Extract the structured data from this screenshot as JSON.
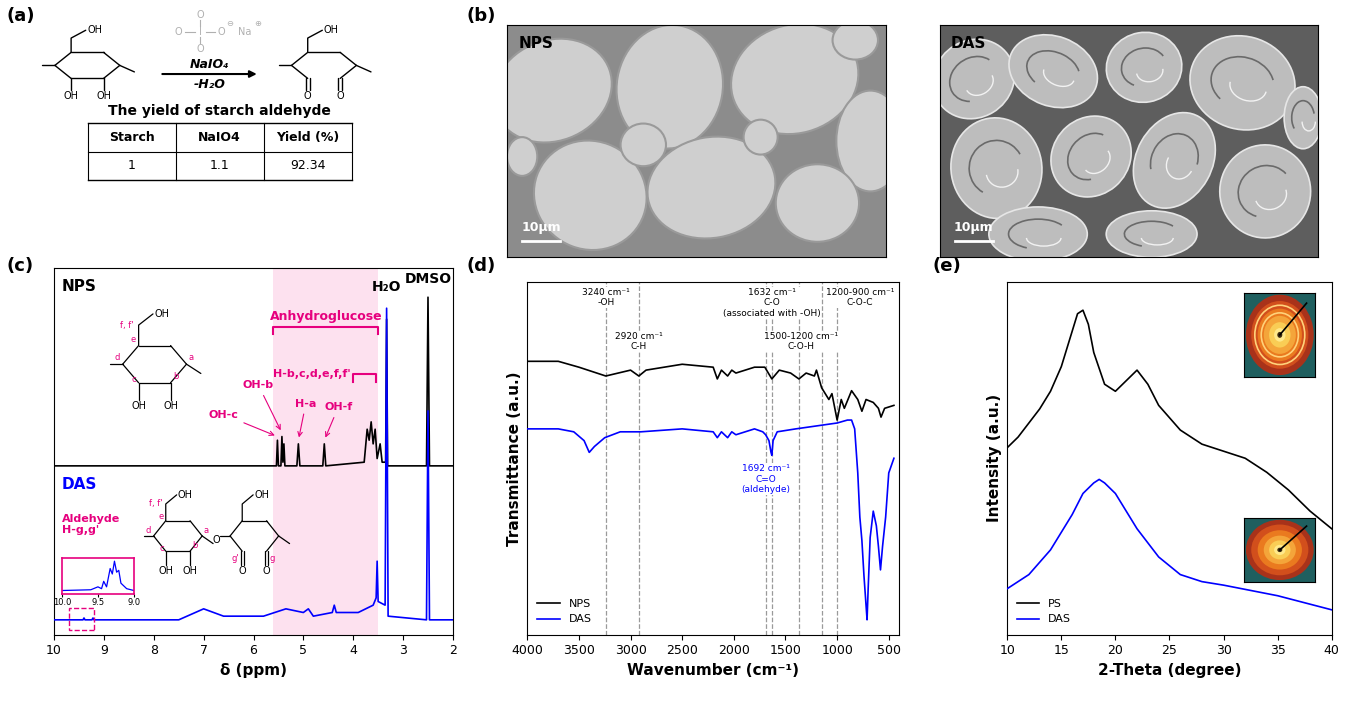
{
  "panel_labels": [
    "(a)",
    "(b)",
    "(c)",
    "(d)",
    "(e)"
  ],
  "scheme": {
    "reagent": "NaIO₄",
    "byproduct": "-H₂O",
    "periodate": {
      "atoms": [
        "I",
        "O",
        "O",
        "O",
        "O",
        "Na"
      ],
      "charges": [
        "⊖",
        "⊕"
      ]
    },
    "reactant_groups": [
      "OH",
      "OH",
      "OH"
    ],
    "product_groups": [
      "OH",
      "O",
      "O"
    ],
    "caption": "The yield of starch aldehyde",
    "table": {
      "header": [
        "Starch",
        "NaIO4",
        "Yield (%)"
      ],
      "rows": [
        [
          1,
          1.1,
          92.34
        ]
      ]
    }
  },
  "sem": {
    "images": [
      "NPS",
      "DAS"
    ],
    "scale_bar": "10μm"
  },
  "chart_data": [
    {
      "type": "line",
      "xlabel": "δ (ppm)",
      "xlim": [
        10,
        2
      ],
      "xticks": [
        10,
        9,
        8,
        7,
        6,
        5,
        4,
        3,
        2
      ],
      "ylim": [
        0,
        1
      ],
      "tick_labels": "x",
      "series": [
        {
          "name": "NPS",
          "color": "#000000",
          "x": [
            10,
            5.6,
            5.54,
            5.52,
            5.5,
            5.45,
            5.43,
            5.41,
            5.39,
            5.37,
            5.13,
            5.1,
            5.07,
            4.61,
            4.58,
            4.55,
            3.78,
            3.72,
            3.68,
            3.64,
            3.6,
            3.56,
            3.52,
            3.46,
            3.42,
            3.38,
            3.35,
            3.33,
            3.31,
            2.53,
            2.5,
            2.47,
            2
          ],
          "values": [
            0.46,
            0.46,
            0.46,
            0.53,
            0.46,
            0.46,
            0.54,
            0.47,
            0.52,
            0.46,
            0.46,
            0.52,
            0.46,
            0.46,
            0.52,
            0.46,
            0.47,
            0.56,
            0.53,
            0.58,
            0.52,
            0.56,
            0.48,
            0.52,
            0.47,
            0.47,
            0.47,
            0.86,
            0.46,
            0.46,
            0.92,
            0.46,
            0.46
          ]
        },
        {
          "name": "DAS",
          "color": "#0000ff",
          "x": [
            10,
            9.42,
            9.4,
            9.38,
            9.24,
            9.22,
            9.2,
            7.5,
            7.0,
            6.6,
            5.8,
            5.35,
            5.0,
            4.9,
            4.8,
            4.42,
            4.38,
            4.34,
            3.9,
            3.6,
            3.54,
            3.52,
            3.5,
            3.36,
            3.33,
            3.3,
            2.53,
            2.5,
            2.47,
            2
          ],
          "values": [
            0.04,
            0.04,
            0.045,
            0.04,
            0.04,
            0.045,
            0.04,
            0.04,
            0.07,
            0.05,
            0.05,
            0.07,
            0.06,
            0.07,
            0.05,
            0.06,
            0.08,
            0.06,
            0.06,
            0.08,
            0.1,
            0.2,
            0.09,
            0.08,
            0.89,
            0.05,
            0.04,
            0.61,
            0.04,
            0.04
          ]
        }
      ],
      "regions": [
        {
          "label": "Anhydroglucose",
          "range": [
            5.6,
            3.5
          ],
          "color": "#fde1ef"
        },
        {
          "label": "H-b,c,d,e,f,f'",
          "range": [
            4.0,
            3.55
          ]
        }
      ],
      "peak_labels": [
        {
          "label": "OH-c",
          "x": 5.52
        },
        {
          "label": "OH-b",
          "x": 5.43
        },
        {
          "label": "H-a",
          "x": 5.1
        },
        {
          "label": "OH-f",
          "x": 4.58
        }
      ],
      "annotations": [
        "H₂O",
        "DMSO"
      ],
      "structures": [
        {
          "series": "NPS",
          "units": [
            {
              "groups": [
                "OH",
                "OH",
                "OH"
              ],
              "atoms": [
                "f, f'",
                "e",
                "d",
                "c",
                "b",
                "a"
              ]
            }
          ]
        },
        {
          "series": "DAS",
          "linker": "O",
          "units": [
            {
              "groups": [
                "OH",
                "OH",
                "OH"
              ],
              "atoms": [
                "f, f'",
                "e",
                "d",
                "c",
                "b",
                "a"
              ]
            },
            {
              "groups": [
                "OH",
                "O",
                "O"
              ],
              "atoms": [
                "g'",
                "g"
              ]
            }
          ]
        }
      ],
      "inset": {
        "label": "Aldehyde\nH-g,g'",
        "xlim": [
          10.0,
          9.0
        ],
        "xticks": [
          10.0,
          9.5,
          9.0
        ],
        "ylim": [
          0,
          1
        ],
        "color": "#0000ff",
        "zoom_range": [
          9.7,
          9.2
        ],
        "x": [
          10.0,
          9.6,
          9.5,
          9.45,
          9.42,
          9.38,
          9.33,
          9.3,
          9.27,
          9.24,
          9.21,
          9.18,
          9.1,
          9.0
        ],
        "values": [
          0.1,
          0.12,
          0.2,
          0.15,
          0.35,
          0.2,
          0.7,
          0.55,
          0.9,
          0.6,
          0.65,
          0.3,
          0.15,
          0.1
        ]
      }
    },
    {
      "type": "line",
      "xlabel": "Wavenumber (cm⁻¹)",
      "ylabel": "Transmittance (a.u.)",
      "xlim": [
        4000,
        400
      ],
      "xticks": [
        4000,
        3500,
        3000,
        2500,
        2000,
        1500,
        1000,
        500
      ],
      "ylim": [
        0,
        1.2
      ],
      "tick_labels": "x",
      "legend": "lower left",
      "series": [
        {
          "name": "NPS",
          "color": "#000000",
          "x": [
            4000,
            3700,
            3500,
            3240,
            3000,
            2920,
            2850,
            2500,
            2200,
            2160,
            2120,
            2060,
            2020,
            1980,
            1800,
            1700,
            1632,
            1560,
            1450,
            1370,
            1300,
            1220,
            1200,
            1150,
            1080,
            1050,
            1000,
            960,
            930,
            860,
            800,
            760,
            720,
            650,
            600,
            575,
            540,
            450
          ],
          "values": [
            0.93,
            0.93,
            0.91,
            0.88,
            0.9,
            0.88,
            0.9,
            0.92,
            0.91,
            0.87,
            0.9,
            0.88,
            0.9,
            0.89,
            0.91,
            0.91,
            0.87,
            0.9,
            0.89,
            0.87,
            0.89,
            0.88,
            0.9,
            0.84,
            0.8,
            0.82,
            0.73,
            0.8,
            0.77,
            0.83,
            0.8,
            0.76,
            0.8,
            0.79,
            0.77,
            0.74,
            0.77,
            0.78
          ]
        },
        {
          "name": "DAS",
          "color": "#0000ff",
          "x": [
            4000,
            3700,
            3550,
            3450,
            3400,
            3350,
            3250,
            3100,
            2900,
            2500,
            2200,
            2160,
            2120,
            2060,
            2020,
            1980,
            1800,
            1720,
            1692,
            1660,
            1640,
            1632,
            1620,
            1580,
            1400,
            1200,
            1000,
            900,
            860,
            830,
            800,
            780,
            760,
            740,
            720,
            710,
            700,
            680,
            650,
            620,
            600,
            580,
            560,
            530,
            500,
            450
          ],
          "values": [
            0.7,
            0.7,
            0.69,
            0.66,
            0.62,
            0.64,
            0.67,
            0.69,
            0.69,
            0.7,
            0.69,
            0.67,
            0.69,
            0.67,
            0.69,
            0.68,
            0.7,
            0.69,
            0.68,
            0.66,
            0.62,
            0.61,
            0.66,
            0.69,
            0.7,
            0.71,
            0.72,
            0.73,
            0.73,
            0.7,
            0.55,
            0.4,
            0.32,
            0.2,
            0.1,
            0.05,
            0.15,
            0.33,
            0.42,
            0.37,
            0.3,
            0.22,
            0.3,
            0.4,
            0.55,
            0.6
          ]
        }
      ],
      "reference_lines": [
        3240,
        2920,
        1692,
        1632,
        1370,
        1150,
        1000
      ],
      "annotations": [
        {
          "label": "3240 cm⁻¹\n-OH",
          "color": "#000000"
        },
        {
          "label": "2920 cm⁻¹\nC-H",
          "color": "#000000"
        },
        {
          "label": "1632 cm⁻¹\nC-O\n(associated with -OH)",
          "color": "#000000"
        },
        {
          "label": "1500-1200 cm⁻¹\nC-O-H",
          "color": "#000000"
        },
        {
          "label": "1200-900 cm⁻¹\nC-O-C",
          "color": "#000000"
        },
        {
          "label": "1692 cm⁻¹\nC=O\n(aldehyde)",
          "color": "#0000ff"
        }
      ]
    },
    {
      "type": "line",
      "xlabel": "2-Theta (degree)",
      "ylabel": "Intensity (a.u.)",
      "xlim": [
        10,
        40
      ],
      "xticks": [
        10,
        15,
        20,
        25,
        30,
        35,
        40
      ],
      "ylim": [
        0,
        1
      ],
      "tick_labels": "x",
      "legend": "lower left",
      "series": [
        {
          "name": "PS",
          "color": "#000000",
          "x": [
            10,
            11,
            12,
            13,
            14,
            15,
            16,
            16.5,
            17,
            17.5,
            18,
            19,
            20,
            21,
            22,
            23,
            24,
            26,
            28,
            30,
            32,
            34,
            36,
            38,
            40
          ],
          "values": [
            0.53,
            0.56,
            0.6,
            0.64,
            0.69,
            0.76,
            0.86,
            0.91,
            0.92,
            0.88,
            0.8,
            0.71,
            0.69,
            0.72,
            0.75,
            0.71,
            0.65,
            0.58,
            0.54,
            0.52,
            0.5,
            0.46,
            0.41,
            0.35,
            0.3
          ]
        },
        {
          "name": "DAS",
          "color": "#0000ff",
          "x": [
            10,
            12,
            14,
            16,
            17,
            18,
            18.5,
            19,
            20,
            21,
            22,
            24,
            26,
            28,
            30,
            35,
            40
          ],
          "values": [
            0.13,
            0.17,
            0.24,
            0.34,
            0.4,
            0.43,
            0.44,
            0.43,
            0.4,
            0.35,
            0.3,
            0.22,
            0.17,
            0.15,
            0.14,
            0.11,
            0.07
          ]
        }
      ]
    }
  ]
}
